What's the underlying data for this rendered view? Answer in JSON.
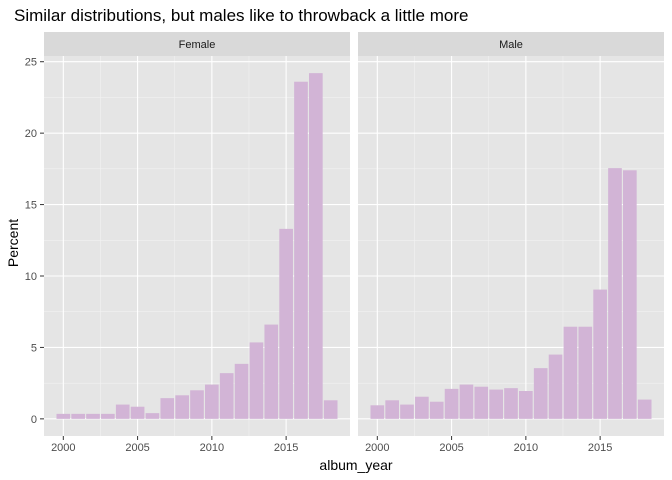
{
  "chart_data": {
    "type": "bar",
    "title": "Similar distributions, but males like to throwback a little more",
    "xlabel": "album_year",
    "ylabel": "Percent",
    "x_ticks": [
      2000,
      2005,
      2010,
      2015
    ],
    "y_ticks": [
      0,
      5,
      10,
      15,
      20,
      25
    ],
    "xlim": [
      1998.7,
      2019.3
    ],
    "ylim": [
      -1.2,
      25.4
    ],
    "bar_color": "#d2b4d6",
    "panel_bg": "#e5e5e5",
    "strip_bg": "#d9d9d9",
    "grid": true,
    "panels": [
      {
        "label": "Female",
        "x": [
          2000,
          2001,
          2002,
          2003,
          2004,
          2005,
          2006,
          2007,
          2008,
          2009,
          2010,
          2011,
          2012,
          2013,
          2014,
          2015,
          2016,
          2017,
          2018
        ],
        "values": [
          0.35,
          0.35,
          0.35,
          0.35,
          1.0,
          0.85,
          0.4,
          1.45,
          1.65,
          2.0,
          2.4,
          3.2,
          3.85,
          5.35,
          6.6,
          13.3,
          23.6,
          24.2,
          1.3
        ]
      },
      {
        "label": "Male",
        "x": [
          2000,
          2001,
          2002,
          2003,
          2004,
          2005,
          2006,
          2007,
          2008,
          2009,
          2010,
          2011,
          2012,
          2013,
          2014,
          2015,
          2016,
          2017,
          2018
        ],
        "values": [
          0.95,
          1.3,
          1.0,
          1.55,
          1.2,
          2.1,
          2.4,
          2.25,
          2.05,
          2.15,
          1.95,
          3.55,
          4.5,
          6.45,
          6.45,
          9.05,
          17.55,
          17.4,
          1.35
        ]
      }
    ]
  }
}
